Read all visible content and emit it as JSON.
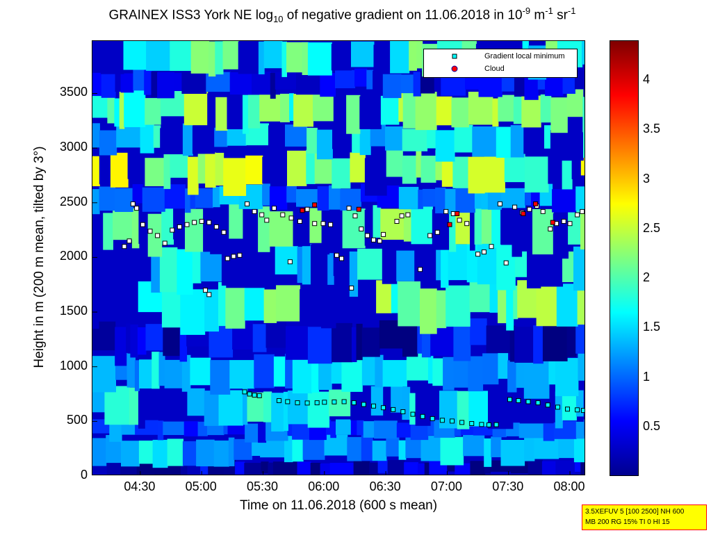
{
  "chart_data": {
    "type": "heatmap",
    "title": {
      "prefix": "GRAINEX ISS3 York NE log",
      "sub": "10",
      "middle": " of negative gradient on 11.06.2018 in 10",
      "sup1": "-9",
      "unit_m": " m",
      "sup2": "-1",
      "unit_sr": " sr",
      "sup3": "-1"
    },
    "xlabel": "Time on 11.06.2018 (600 s mean)",
    "ylabel": "Height in m (200 m mean, tilted by 3°)",
    "x_ticks": [
      "04:30",
      "05:00",
      "05:30",
      "06:00",
      "06:30",
      "07:00",
      "07:30",
      "08:00"
    ],
    "x_tick_hours": [
      4.5,
      5.0,
      5.5,
      6.0,
      6.5,
      7.0,
      7.5,
      8.0
    ],
    "xlim_hours": [
      4.11,
      8.13
    ],
    "y_ticks": [
      "0",
      "500",
      "1000",
      "1500",
      "2000",
      "2500",
      "3000",
      "3500"
    ],
    "y_tick_values": [
      0,
      500,
      1000,
      1500,
      2000,
      2500,
      3000,
      3500
    ],
    "ylim": [
      0,
      3980
    ],
    "colorbar": {
      "ticks": [
        "0.5",
        "1",
        "1.5",
        "2",
        "2.5",
        "3",
        "3.5",
        "4"
      ],
      "tick_values": [
        0.5,
        1,
        1.5,
        2,
        2.5,
        3,
        3.5,
        4
      ],
      "range": [
        0,
        4.4
      ],
      "colormap": "jet"
    },
    "legend": {
      "position": "top-right",
      "entries": [
        {
          "label": "Gradient local minimum",
          "marker": "square",
          "color": "#00ffff"
        },
        {
          "label": "Cloud",
          "marker": "circle",
          "color": "#ff0000"
        }
      ]
    },
    "bands": [
      {
        "y0": 0,
        "y1": 130,
        "level": 0.2
      },
      {
        "y0": 130,
        "y1": 350,
        "level": 1.3
      },
      {
        "y0": 350,
        "y1": 500,
        "level": 0.9
      },
      {
        "y0": 500,
        "y1": 800,
        "level": 1.7
      },
      {
        "y0": 800,
        "y1": 1100,
        "level": 1.3
      },
      {
        "y0": 1100,
        "y1": 1400,
        "level": 0.4
      },
      {
        "y0": 1400,
        "y1": 1750,
        "level": 2.0
      },
      {
        "y0": 1750,
        "y1": 2100,
        "level": 1.6
      },
      {
        "y0": 2100,
        "y1": 2450,
        "level": 2.2
      },
      {
        "y0": 2450,
        "y1": 2650,
        "level": 1.0
      },
      {
        "y0": 2650,
        "y1": 2950,
        "level": 2.3
      },
      {
        "y0": 2950,
        "y1": 3200,
        "level": 1.5
      },
      {
        "y0": 3200,
        "y1": 3500,
        "level": 2.1
      },
      {
        "y0": 3500,
        "y1": 3700,
        "level": 0.5
      },
      {
        "y0": 3700,
        "y1": 3980,
        "level": 1.8
      }
    ],
    "minima_series": [
      {
        "t": 5.35,
        "h": 770
      },
      {
        "t": 5.39,
        "h": 750
      },
      {
        "t": 5.43,
        "h": 740
      },
      {
        "t": 5.47,
        "h": 735
      },
      {
        "t": 5.63,
        "h": 690
      },
      {
        "t": 5.7,
        "h": 680
      },
      {
        "t": 5.78,
        "h": 670
      },
      {
        "t": 5.86,
        "h": 668
      },
      {
        "t": 5.94,
        "h": 670
      },
      {
        "t": 6.0,
        "h": 675
      },
      {
        "t": 6.08,
        "h": 678
      },
      {
        "t": 6.16,
        "h": 680
      },
      {
        "t": 6.24,
        "h": 670
      },
      {
        "t": 6.32,
        "h": 655
      },
      {
        "t": 6.4,
        "h": 640
      },
      {
        "t": 6.48,
        "h": 625
      },
      {
        "t": 6.56,
        "h": 608
      },
      {
        "t": 6.64,
        "h": 588
      },
      {
        "t": 6.72,
        "h": 565
      },
      {
        "t": 6.8,
        "h": 545
      },
      {
        "t": 6.88,
        "h": 525
      },
      {
        "t": 6.96,
        "h": 510
      },
      {
        "t": 7.04,
        "h": 503
      },
      {
        "t": 7.12,
        "h": 490
      },
      {
        "t": 7.2,
        "h": 480
      },
      {
        "t": 7.28,
        "h": 472
      },
      {
        "t": 7.34,
        "h": 468
      },
      {
        "t": 7.4,
        "h": 470
      },
      {
        "t": 7.51,
        "h": 700
      },
      {
        "t": 7.58,
        "h": 690
      },
      {
        "t": 7.66,
        "h": 680
      },
      {
        "t": 7.74,
        "h": 670
      },
      {
        "t": 7.82,
        "h": 650
      },
      {
        "t": 7.9,
        "h": 630
      },
      {
        "t": 7.98,
        "h": 612
      },
      {
        "t": 8.06,
        "h": 605
      },
      {
        "t": 8.11,
        "h": 600
      },
      {
        "t": 4.37,
        "h": 2100
      },
      {
        "t": 4.41,
        "h": 2150
      },
      {
        "t": 4.44,
        "h": 2490
      },
      {
        "t": 4.47,
        "h": 2450
      },
      {
        "t": 4.52,
        "h": 2300
      },
      {
        "t": 4.58,
        "h": 2240
      },
      {
        "t": 4.64,
        "h": 2200
      },
      {
        "t": 4.7,
        "h": 2130
      },
      {
        "t": 4.76,
        "h": 2250
      },
      {
        "t": 4.82,
        "h": 2280
      },
      {
        "t": 4.88,
        "h": 2300
      },
      {
        "t": 4.94,
        "h": 2320
      },
      {
        "t": 5.0,
        "h": 2330
      },
      {
        "t": 5.06,
        "h": 2320
      },
      {
        "t": 5.12,
        "h": 2280
      },
      {
        "t": 5.18,
        "h": 2230
      },
      {
        "t": 5.03,
        "h": 1700
      },
      {
        "t": 5.06,
        "h": 1660
      },
      {
        "t": 5.21,
        "h": 1990
      },
      {
        "t": 5.26,
        "h": 2010
      },
      {
        "t": 5.31,
        "h": 2020
      },
      {
        "t": 5.37,
        "h": 2490
      },
      {
        "t": 5.43,
        "h": 2420
      },
      {
        "t": 5.49,
        "h": 2390
      },
      {
        "t": 5.53,
        "h": 2340
      },
      {
        "t": 5.59,
        "h": 2450
      },
      {
        "t": 5.66,
        "h": 2390
      },
      {
        "t": 5.73,
        "h": 2360
      },
      {
        "t": 5.8,
        "h": 2330
      },
      {
        "t": 5.86,
        "h": 2440
      },
      {
        "t": 5.92,
        "h": 2310
      },
      {
        "t": 5.99,
        "h": 2310
      },
      {
        "t": 6.05,
        "h": 2300
      },
      {
        "t": 6.1,
        "h": 2020
      },
      {
        "t": 6.14,
        "h": 1990
      },
      {
        "t": 6.2,
        "h": 2450
      },
      {
        "t": 6.25,
        "h": 2380
      },
      {
        "t": 6.3,
        "h": 2260
      },
      {
        "t": 6.35,
        "h": 2200
      },
      {
        "t": 6.4,
        "h": 2160
      },
      {
        "t": 6.45,
        "h": 2150
      },
      {
        "t": 6.48,
        "h": 2210
      },
      {
        "t": 6.59,
        "h": 2330
      },
      {
        "t": 6.63,
        "h": 2380
      },
      {
        "t": 6.68,
        "h": 2390
      },
      {
        "t": 6.78,
        "h": 1890
      },
      {
        "t": 6.86,
        "h": 2200
      },
      {
        "t": 6.92,
        "h": 2230
      },
      {
        "t": 6.99,
        "h": 2420
      },
      {
        "t": 7.05,
        "h": 2400
      },
      {
        "t": 7.1,
        "h": 2340
      },
      {
        "t": 7.16,
        "h": 2310
      },
      {
        "t": 7.25,
        "h": 2030
      },
      {
        "t": 7.3,
        "h": 2050
      },
      {
        "t": 7.36,
        "h": 2100
      },
      {
        "t": 7.43,
        "h": 2490
      },
      {
        "t": 7.48,
        "h": 1950
      },
      {
        "t": 7.55,
        "h": 2460
      },
      {
        "t": 7.61,
        "h": 2410
      },
      {
        "t": 7.67,
        "h": 2440
      },
      {
        "t": 7.73,
        "h": 2470
      },
      {
        "t": 7.78,
        "h": 2420
      },
      {
        "t": 7.84,
        "h": 2260
      },
      {
        "t": 7.89,
        "h": 2310
      },
      {
        "t": 7.95,
        "h": 2330
      },
      {
        "t": 8.0,
        "h": 2310
      },
      {
        "t": 8.06,
        "h": 2390
      },
      {
        "t": 8.1,
        "h": 2420
      },
      {
        "t": 6.22,
        "h": 1720
      },
      {
        "t": 5.72,
        "h": 1960
      }
    ],
    "cloud_series": [
      {
        "t": 5.92,
        "h": 2480
      },
      {
        "t": 6.28,
        "h": 2440
      },
      {
        "t": 7.02,
        "h": 2300
      },
      {
        "t": 7.08,
        "h": 2400
      },
      {
        "t": 7.62,
        "h": 2400
      },
      {
        "t": 7.72,
        "h": 2490
      },
      {
        "t": 7.86,
        "h": 2320
      },
      {
        "t": 5.82,
        "h": 2430
      }
    ]
  },
  "info_box": {
    "line1": "3.5XEFUV 5 [100 2500] NH 600",
    "line2": "MB 200 RG 15% TI 0 HI 15"
  }
}
